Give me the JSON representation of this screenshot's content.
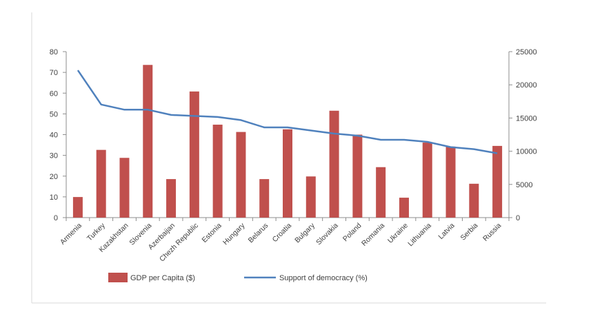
{
  "chart_data": {
    "type": "bar",
    "categories": [
      "Armenia",
      "Turkey",
      "Kazakhstan",
      "Slovenia",
      "Azerbaijan",
      "Chezh Republic",
      "Estonia",
      "Hungary",
      "Belarus",
      "Croatia",
      "Bulgary",
      "Slovakia",
      "Poland",
      "Romania",
      "Ukraine",
      "Lithuania",
      "Latvia",
      "Serbia",
      "Russia"
    ],
    "series": [
      {
        "name": "GDP per Capita ($)",
        "type": "bar",
        "axis": "right",
        "color": "#C0504D",
        "values": [
          3100,
          10200,
          9000,
          23000,
          5800,
          19000,
          14000,
          12900,
          5800,
          13300,
          6200,
          16100,
          12500,
          7600,
          3000,
          11300,
          10700,
          5100,
          10800
        ]
      },
      {
        "name": "Support of democracy (%)",
        "type": "line",
        "axis": "left",
        "color": "#4F81BD",
        "values": [
          71,
          54.5,
          52,
          52,
          49.5,
          49,
          48.5,
          47,
          43.5,
          43.5,
          42,
          40.5,
          39.5,
          37.5,
          37.5,
          36.5,
          34,
          33,
          31
        ]
      }
    ],
    "y_left": {
      "ylim": [
        0,
        80
      ],
      "ticks": [
        "0",
        "10",
        "20",
        "30",
        "40",
        "50",
        "60",
        "70",
        "80"
      ]
    },
    "y_right": {
      "ylim": [
        0,
        25000
      ],
      "ticks": [
        "0",
        "5000",
        "10000",
        "15000",
        "20000",
        "25000"
      ]
    },
    "grid": false,
    "legend_position": "bottom"
  }
}
